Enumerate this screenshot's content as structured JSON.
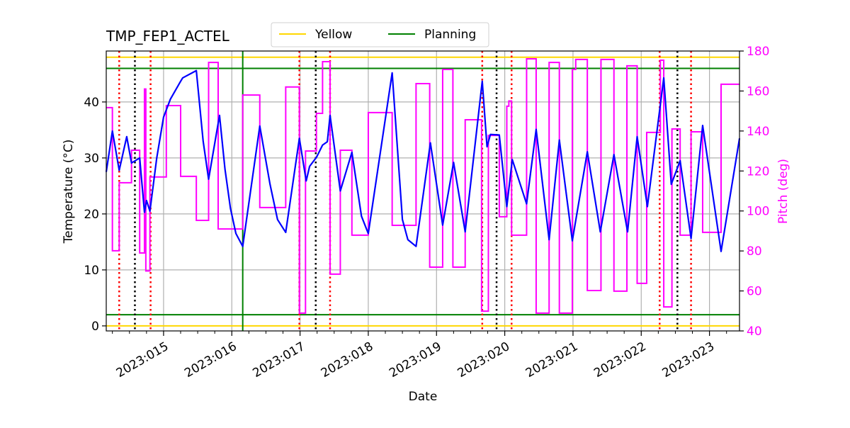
{
  "chart_data": {
    "type": "line",
    "title": "TMP_FEP1_ACTEL",
    "xlabel": "Date",
    "ylabel": "Temperature ($^\\circ$C)",
    "ylabel_display": "Temperature (°C)",
    "y2label": "Pitch (deg)",
    "x_unit": "day of year 2023",
    "xlim": [
      14.16,
      23.44
    ],
    "ylim": [
      -0.9,
      49.1
    ],
    "y2lim": [
      40,
      180
    ],
    "grid": true,
    "legend_placement": "top-center",
    "xticks": [
      {
        "value": 15,
        "label": "2023:015"
      },
      {
        "value": 16,
        "label": "2023:016"
      },
      {
        "value": 17,
        "label": "2023:017"
      },
      {
        "value": 18,
        "label": "2023:018"
      },
      {
        "value": 19,
        "label": "2023:019"
      },
      {
        "value": 20,
        "label": "2023:020"
      },
      {
        "value": 21,
        "label": "2023:021"
      },
      {
        "value": 22,
        "label": "2023:022"
      },
      {
        "value": 23,
        "label": "2023:023"
      }
    ],
    "yticks": [
      {
        "value": 0,
        "label": "0"
      },
      {
        "value": 10,
        "label": "10"
      },
      {
        "value": 20,
        "label": "20"
      },
      {
        "value": 30,
        "label": "30"
      },
      {
        "value": 40,
        "label": "40"
      }
    ],
    "y2ticks": [
      {
        "value": 40,
        "label": "40"
      },
      {
        "value": 60,
        "label": "60"
      },
      {
        "value": 80,
        "label": "80"
      },
      {
        "value": 100,
        "label": "100"
      },
      {
        "value": 120,
        "label": "120"
      },
      {
        "value": 140,
        "label": "140"
      },
      {
        "value": 160,
        "label": "160"
      },
      {
        "value": 180,
        "label": "180"
      }
    ],
    "legend": [
      {
        "label": "Yellow",
        "color": "#ffd700"
      },
      {
        "label": "Planning",
        "color": "#008000"
      }
    ],
    "limits": [
      {
        "name": "Yellow",
        "values": [
          48,
          0
        ],
        "color": "#ffd700"
      },
      {
        "name": "Planning",
        "values": [
          46,
          2
        ],
        "color": "#008000"
      }
    ],
    "vlines": {
      "red_dotted": [
        14.35,
        14.81,
        16.99,
        17.44,
        19.67,
        20.1,
        22.27,
        22.73
      ],
      "black_dotted": [
        14.58,
        17.23,
        19.88,
        22.53
      ],
      "green_solid": [
        16.16
      ]
    },
    "colors": {
      "temperature": "#0000ff",
      "pitch": "#ff00ff",
      "red_lines": "#ff0000",
      "black_lines": "#000000",
      "grid": "#b0b0b0"
    },
    "temperature": [
      [
        14.16,
        27.5
      ],
      [
        14.25,
        34.8
      ],
      [
        14.35,
        27.8
      ],
      [
        14.46,
        33.8
      ],
      [
        14.53,
        29.1
      ],
      [
        14.65,
        30.0
      ],
      [
        14.72,
        20.3
      ],
      [
        14.75,
        22.4
      ],
      [
        14.8,
        20.5
      ],
      [
        14.9,
        30
      ],
      [
        15.0,
        37.3
      ],
      [
        15.1,
        40.5
      ],
      [
        15.25,
        43.7
      ],
      [
        15.28,
        44.3
      ],
      [
        15.48,
        45.6
      ],
      [
        15.58,
        33
      ],
      [
        15.66,
        26.2
      ],
      [
        15.82,
        37.6
      ],
      [
        15.9,
        28
      ],
      [
        15.98,
        21
      ],
      [
        16.06,
        16.5
      ],
      [
        16.16,
        14.2
      ],
      [
        16.41,
        35.7
      ],
      [
        16.56,
        25.3
      ],
      [
        16.67,
        19.0
      ],
      [
        16.79,
        16.7
      ],
      [
        16.99,
        33.5
      ],
      [
        17.09,
        25.9
      ],
      [
        17.14,
        28.5
      ],
      [
        17.24,
        30.1
      ],
      [
        17.33,
        32.3
      ],
      [
        17.4,
        32.9
      ],
      [
        17.44,
        37.6
      ],
      [
        17.59,
        24.1
      ],
      [
        17.76,
        31.0
      ],
      [
        17.9,
        19.6
      ],
      [
        18.0,
        16.5
      ],
      [
        18.35,
        45.2
      ],
      [
        18.5,
        19.0
      ],
      [
        18.58,
        15.4
      ],
      [
        18.7,
        14.2
      ],
      [
        18.91,
        32.7
      ],
      [
        19.09,
        18.0
      ],
      [
        19.25,
        29.2
      ],
      [
        19.42,
        16.8
      ],
      [
        19.67,
        43.7
      ],
      [
        19.74,
        32.0
      ],
      [
        19.79,
        34.2
      ],
      [
        19.92,
        34.1
      ],
      [
        20.03,
        21.3
      ],
      [
        20.11,
        29.7
      ],
      [
        20.32,
        21.8
      ],
      [
        20.46,
        35.1
      ],
      [
        20.65,
        15.4
      ],
      [
        20.8,
        33.2
      ],
      [
        20.99,
        15.2
      ],
      [
        21.21,
        31.1
      ],
      [
        21.4,
        16.8
      ],
      [
        21.6,
        30.6
      ],
      [
        21.8,
        16.8
      ],
      [
        21.94,
        33.8
      ],
      [
        22.09,
        21.3
      ],
      [
        22.33,
        44.3
      ],
      [
        22.44,
        25.3
      ],
      [
        22.57,
        29.5
      ],
      [
        22.73,
        15.6
      ],
      [
        22.9,
        35.8
      ],
      [
        23.17,
        13.3
      ],
      [
        23.44,
        33.5
      ]
    ],
    "pitch_steps": [
      [
        14.16,
        151.7
      ],
      [
        14.25,
        80.1
      ],
      [
        14.35,
        114.1
      ],
      [
        14.53,
        130.4
      ],
      [
        14.65,
        79
      ],
      [
        14.72,
        161
      ],
      [
        14.74,
        70
      ],
      [
        14.8,
        117
      ],
      [
        15.04,
        152.7
      ],
      [
        15.25,
        117.3
      ],
      [
        15.48,
        95.3
      ],
      [
        15.66,
        174.3
      ],
      [
        15.8,
        91
      ],
      [
        16.16,
        158
      ],
      [
        16.41,
        101.7
      ],
      [
        16.79,
        162
      ],
      [
        16.99,
        48.9
      ],
      [
        17.08,
        130
      ],
      [
        17.24,
        148.8
      ],
      [
        17.33,
        174.7
      ],
      [
        17.44,
        68.4
      ],
      [
        17.59,
        130.4
      ],
      [
        17.76,
        87.9
      ],
      [
        18.0,
        149.2
      ],
      [
        18.35,
        92.8
      ],
      [
        18.7,
        163.7
      ],
      [
        18.9,
        71.9
      ],
      [
        19.09,
        170.8
      ],
      [
        19.24,
        71.9
      ],
      [
        19.42,
        145.6
      ],
      [
        19.66,
        49.9
      ],
      [
        19.76,
        137.8
      ],
      [
        19.92,
        97.1
      ],
      [
        20.03,
        152.4
      ],
      [
        20.06,
        155
      ],
      [
        20.1,
        87.9
      ],
      [
        20.32,
        176.1
      ],
      [
        20.46,
        48.9
      ],
      [
        20.65,
        174.3
      ],
      [
        20.8,
        48.9
      ],
      [
        20.99,
        170.8
      ],
      [
        21.04,
        175.8
      ],
      [
        21.21,
        60.2
      ],
      [
        21.41,
        175.8
      ],
      [
        21.6,
        59.9
      ],
      [
        21.79,
        172.6
      ],
      [
        21.94,
        63.8
      ],
      [
        22.08,
        139.3
      ],
      [
        22.28,
        175.4
      ],
      [
        22.33,
        52
      ],
      [
        22.45,
        141
      ],
      [
        22.57,
        87.9
      ],
      [
        22.73,
        139.6
      ],
      [
        22.9,
        89.3
      ],
      [
        23.17,
        163.4
      ],
      [
        23.44,
        163.4
      ]
    ]
  }
}
